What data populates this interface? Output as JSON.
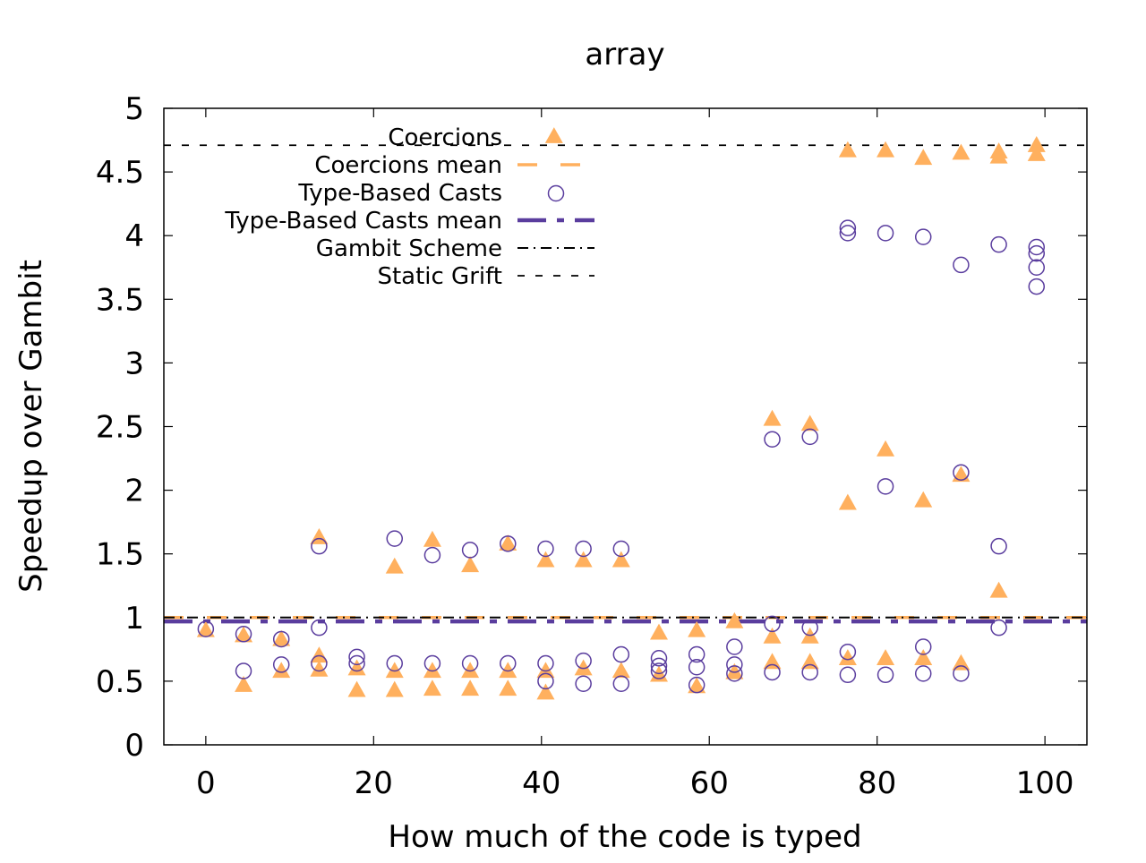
{
  "chart_data": {
    "type": "scatter",
    "title": "array",
    "xlabel": "How much of the code is typed",
    "ylabel": "Speedup over Gambit",
    "xlim": [
      -5,
      105
    ],
    "ylim": [
      0,
      5
    ],
    "x_ticks": [
      0,
      20,
      40,
      60,
      80,
      100
    ],
    "y_ticks": [
      0,
      0.5,
      1,
      1.5,
      2,
      2.5,
      3,
      3.5,
      4,
      4.5,
      5
    ],
    "legend_position": "top-left",
    "grid": false,
    "series": [
      {
        "name": "Coercions",
        "marker": "filled-triangle",
        "color": "#ffb05e",
        "points": [
          [
            0,
            0.9
          ],
          [
            4.5,
            0.86
          ],
          [
            4.5,
            0.47
          ],
          [
            9,
            0.83
          ],
          [
            9,
            0.58
          ],
          [
            13.5,
            1.63
          ],
          [
            13.5,
            0.7
          ],
          [
            13.5,
            0.59
          ],
          [
            18,
            0.6
          ],
          [
            18,
            0.43
          ],
          [
            22.5,
            1.4
          ],
          [
            22.5,
            0.58
          ],
          [
            22.5,
            0.43
          ],
          [
            27,
            1.61
          ],
          [
            27,
            0.58
          ],
          [
            27,
            0.44
          ],
          [
            31.5,
            1.41
          ],
          [
            31.5,
            0.58
          ],
          [
            31.5,
            0.44
          ],
          [
            36,
            1.58
          ],
          [
            36,
            0.58
          ],
          [
            36,
            0.44
          ],
          [
            40.5,
            1.45
          ],
          [
            40.5,
            0.58
          ],
          [
            40.5,
            0.41
          ],
          [
            45,
            1.45
          ],
          [
            45,
            0.6
          ],
          [
            49.5,
            1.45
          ],
          [
            49.5,
            0.58
          ],
          [
            54,
            0.88
          ],
          [
            54,
            0.55
          ],
          [
            58.5,
            0.9
          ],
          [
            58.5,
            0.46
          ],
          [
            63,
            0.97
          ],
          [
            63,
            0.57
          ],
          [
            67.5,
            2.56
          ],
          [
            67.5,
            0.85
          ],
          [
            67.5,
            0.65
          ],
          [
            72,
            2.52
          ],
          [
            72,
            0.85
          ],
          [
            72,
            0.65
          ],
          [
            76.5,
            4.67
          ],
          [
            76.5,
            1.9
          ],
          [
            76.5,
            0.68
          ],
          [
            81,
            4.67
          ],
          [
            81,
            2.32
          ],
          [
            81,
            0.68
          ],
          [
            85.5,
            4.61
          ],
          [
            85.5,
            1.92
          ],
          [
            85.5,
            0.68
          ],
          [
            90,
            4.65
          ],
          [
            90,
            2.12
          ],
          [
            90,
            0.64
          ],
          [
            94.5,
            4.66
          ],
          [
            94.5,
            4.62
          ],
          [
            94.5,
            1.21
          ],
          [
            99,
            4.71
          ],
          [
            99,
            4.64
          ]
        ]
      },
      {
        "name": "Coercions mean",
        "line": "long-dash",
        "color": "#ffb05e",
        "value": 1.0
      },
      {
        "name": "Type-Based Casts",
        "marker": "open-circle",
        "color": "#5a3d9e",
        "points": [
          [
            0,
            0.91
          ],
          [
            4.5,
            0.87
          ],
          [
            4.5,
            0.58
          ],
          [
            9,
            0.83
          ],
          [
            9,
            0.63
          ],
          [
            13.5,
            1.56
          ],
          [
            13.5,
            0.92
          ],
          [
            13.5,
            0.64
          ],
          [
            18,
            0.69
          ],
          [
            18,
            0.64
          ],
          [
            22.5,
            1.62
          ],
          [
            22.5,
            0.64
          ],
          [
            27,
            1.49
          ],
          [
            27,
            0.64
          ],
          [
            31.5,
            1.53
          ],
          [
            31.5,
            0.64
          ],
          [
            36,
            1.58
          ],
          [
            36,
            0.64
          ],
          [
            40.5,
            1.54
          ],
          [
            40.5,
            0.64
          ],
          [
            40.5,
            0.5
          ],
          [
            45,
            1.54
          ],
          [
            45,
            0.66
          ],
          [
            45,
            0.48
          ],
          [
            49.5,
            1.54
          ],
          [
            49.5,
            0.71
          ],
          [
            49.5,
            0.48
          ],
          [
            54,
            0.68
          ],
          [
            54,
            0.62
          ],
          [
            54,
            0.58
          ],
          [
            58.5,
            0.71
          ],
          [
            58.5,
            0.61
          ],
          [
            58.5,
            0.47
          ],
          [
            63,
            0.77
          ],
          [
            63,
            0.63
          ],
          [
            63,
            0.56
          ],
          [
            67.5,
            2.4
          ],
          [
            67.5,
            0.95
          ],
          [
            67.5,
            0.57
          ],
          [
            72,
            2.42
          ],
          [
            72,
            0.92
          ],
          [
            72,
            0.57
          ],
          [
            76.5,
            4.06
          ],
          [
            76.5,
            4.02
          ],
          [
            76.5,
            0.73
          ],
          [
            76.5,
            0.55
          ],
          [
            81,
            4.02
          ],
          [
            81,
            2.03
          ],
          [
            81,
            0.55
          ],
          [
            85.5,
            3.99
          ],
          [
            85.5,
            0.77
          ],
          [
            85.5,
            0.56
          ],
          [
            90,
            3.77
          ],
          [
            90,
            2.14
          ],
          [
            90,
            0.56
          ],
          [
            94.5,
            3.93
          ],
          [
            94.5,
            1.56
          ],
          [
            94.5,
            0.92
          ],
          [
            99,
            3.91
          ],
          [
            99,
            3.86
          ],
          [
            99,
            3.75
          ],
          [
            99,
            3.6
          ]
        ]
      },
      {
        "name": "Type-Based Casts mean",
        "line": "dash-dot-thick",
        "color": "#5a3d9e",
        "value": 0.97
      },
      {
        "name": "Gambit Scheme",
        "line": "dash-dot",
        "color": "#000000",
        "value": 1.0
      },
      {
        "name": "Static Grift",
        "line": "dashed",
        "color": "#000000",
        "value": 4.71
      }
    ],
    "extra_legend_marker": {
      "x": 41.5,
      "y": 4.78
    }
  }
}
